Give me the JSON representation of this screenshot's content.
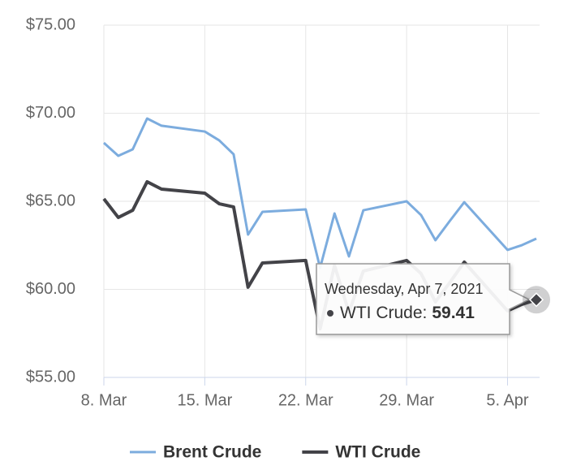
{
  "chart_data": {
    "type": "line",
    "x": [
      "2021-03-08",
      "2021-03-09",
      "2021-03-10",
      "2021-03-11",
      "2021-03-12",
      "2021-03-15",
      "2021-03-16",
      "2021-03-17",
      "2021-03-18",
      "2021-03-19",
      "2021-03-22",
      "2021-03-23",
      "2021-03-24",
      "2021-03-25",
      "2021-03-26",
      "2021-03-29",
      "2021-03-30",
      "2021-03-31",
      "2021-04-01",
      "2021-04-02",
      "2021-04-05",
      "2021-04-06",
      "2021-04-07"
    ],
    "series": [
      {
        "name": "Brent Crude",
        "color": "#7cacde",
        "values": [
          68.32,
          67.58,
          67.95,
          69.7,
          69.29,
          68.96,
          68.46,
          67.67,
          63.11,
          64.4,
          64.54,
          61.22,
          64.31,
          61.87,
          64.49,
          65.0,
          64.22,
          62.79,
          63.89,
          64.95,
          62.24,
          62.51,
          62.88
        ]
      },
      {
        "name": "WTI Crude",
        "color": "#434348",
        "values": [
          65.14,
          64.08,
          64.49,
          66.11,
          65.69,
          65.46,
          64.86,
          64.68,
          60.12,
          61.5,
          61.64,
          57.76,
          61.36,
          58.69,
          61.04,
          61.64,
          60.9,
          59.29,
          60.39,
          61.55,
          58.78,
          59.15,
          59.41
        ]
      }
    ],
    "xlim": [
      "2021-03-08",
      "2021-04-07"
    ],
    "xticks": [
      {
        "value": "2021-03-08",
        "label": "8. Mar"
      },
      {
        "value": "2021-03-15",
        "label": "15. Mar"
      },
      {
        "value": "2021-03-22",
        "label": "22. Mar"
      },
      {
        "value": "2021-03-29",
        "label": "29. Mar"
      },
      {
        "value": "2021-04-05",
        "label": "5. Apr"
      }
    ],
    "ylim": [
      55,
      75
    ],
    "yticks": [
      {
        "value": 55,
        "label": "$55.00"
      },
      {
        "value": 60,
        "label": "$60.00"
      },
      {
        "value": 65,
        "label": "$65.00"
      },
      {
        "value": 70,
        "label": "$70.00"
      },
      {
        "value": 75,
        "label": "$75.00"
      }
    ],
    "grid": true,
    "legend": "bottom",
    "tooltip": {
      "title": "Wednesday, Apr 7, 2021",
      "label": "WTI Crude:",
      "series": 1,
      "index": 22
    }
  }
}
